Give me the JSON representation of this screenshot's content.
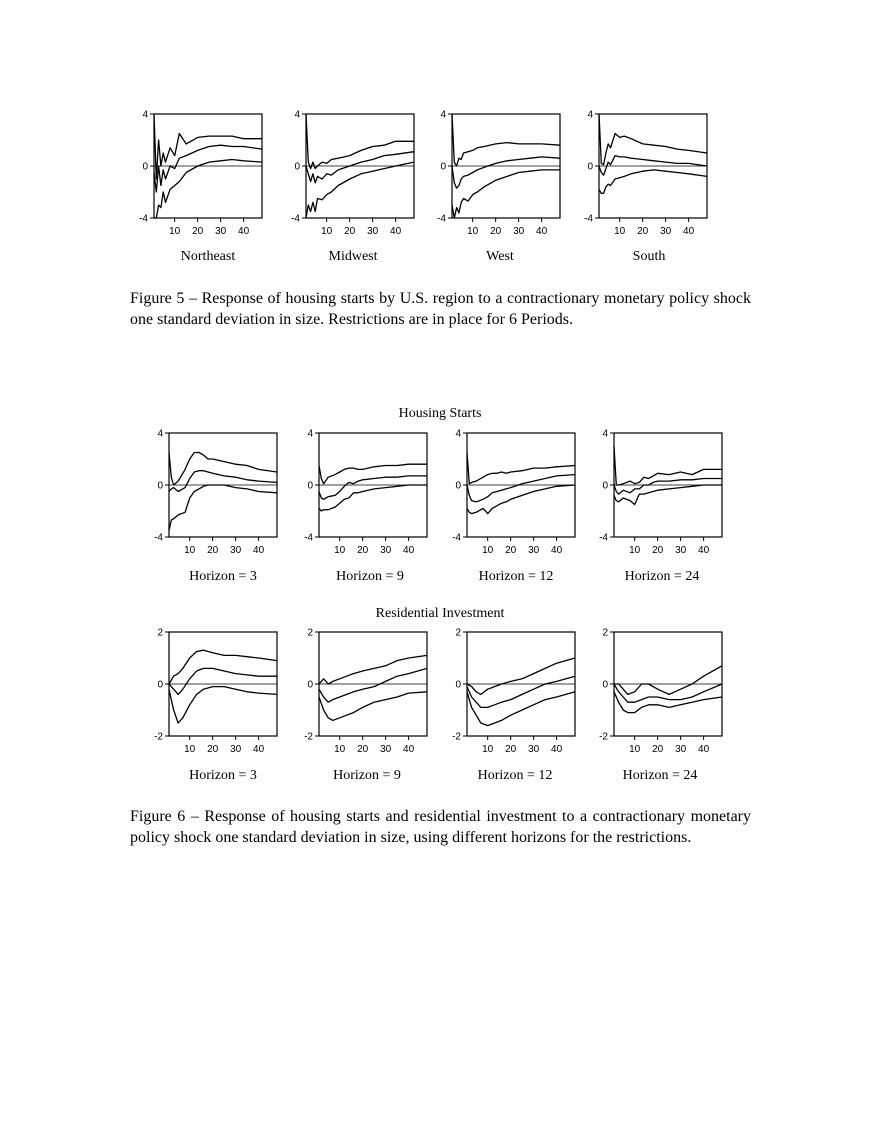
{
  "figure5": {
    "caption": "Figure 5 – Response of housing starts by U.S. region to a contractionary monetary policy shock one standard deviation in size. Restrictions are in place for 6 Periods.",
    "panels": [
      {
        "label": "Northeast"
      },
      {
        "label": "Midwest"
      },
      {
        "label": "West"
      },
      {
        "label": "South"
      }
    ]
  },
  "figure6": {
    "row1_title": "Housing Starts",
    "row2_title": "Residential Investment",
    "caption": "Figure 6 – Response of housing starts and residential investment to a contractionary monetary policy shock one standard deviation in size, using different horizons for the restrictions.",
    "row1_panels": [
      {
        "label": "Horizon = 3"
      },
      {
        "label": "Horizon = 9"
      },
      {
        "label": "Horizon = 12"
      },
      {
        "label": "Horizon = 24"
      }
    ],
    "row2_panels": [
      {
        "label": "Horizon = 3"
      },
      {
        "label": "Horizon = 9"
      },
      {
        "label": "Horizon = 12"
      },
      {
        "label": "Horizon = 24"
      }
    ]
  },
  "chart_data": [
    {
      "type": "line",
      "title": "Northeast",
      "xlim": [
        1,
        48
      ],
      "ylim": [
        -4,
        4
      ],
      "yticks": [
        4,
        0,
        -4
      ],
      "xticks": [
        10,
        20,
        30,
        40
      ],
      "zero_line": true,
      "x": [
        1,
        2,
        3,
        4,
        5,
        6,
        8,
        10,
        12,
        15,
        20,
        25,
        30,
        35,
        40,
        48
      ],
      "series": [
        {
          "values": [
            4,
            -1,
            2,
            0,
            1,
            0.3,
            1.4,
            0.8,
            2.5,
            1.7,
            2.2,
            2.3,
            2.3,
            2.3,
            2.1,
            2.1
          ]
        },
        {
          "values": [
            -0.5,
            -2,
            0,
            -1.5,
            -0.3,
            -1,
            0,
            -0.2,
            0.6,
            0.8,
            1.2,
            1.5,
            1.6,
            1.5,
            1.5,
            1.3
          ]
        },
        {
          "values": [
            -4,
            -4,
            -3,
            -3.2,
            -2,
            -2.8,
            -1.8,
            -1.5,
            -1.2,
            -0.5,
            0,
            0.3,
            0.4,
            0.5,
            0.4,
            0.3
          ]
        }
      ]
    },
    {
      "type": "line",
      "title": "Midwest",
      "xlim": [
        1,
        48
      ],
      "ylim": [
        -4,
        4
      ],
      "yticks": [
        4,
        0,
        -4
      ],
      "xticks": [
        10,
        20,
        30,
        40
      ],
      "zero_line": true,
      "x": [
        1,
        2,
        3,
        4,
        5,
        6,
        8,
        10,
        12,
        15,
        20,
        25,
        30,
        35,
        40,
        48
      ],
      "series": [
        {
          "values": [
            4,
            0.3,
            -0.2,
            0.3,
            -0.2,
            0,
            0.3,
            0.2,
            0.5,
            0.6,
            0.8,
            1.2,
            1.5,
            1.6,
            1.9,
            1.9
          ]
        },
        {
          "values": [
            0,
            -0.6,
            -1.2,
            -0.6,
            -1.3,
            -0.8,
            -1.0,
            -0.6,
            -0.7,
            -0.3,
            0,
            0.3,
            0.5,
            0.8,
            0.9,
            1.1
          ]
        },
        {
          "values": [
            -4,
            -3,
            -3.5,
            -2.8,
            -3.5,
            -2.5,
            -2.6,
            -2.2,
            -2,
            -1.5,
            -1,
            -0.6,
            -0.4,
            -0.2,
            0,
            0.3
          ]
        }
      ]
    },
    {
      "type": "line",
      "title": "West",
      "xlim": [
        1,
        48
      ],
      "ylim": [
        -4,
        4
      ],
      "yticks": [
        4,
        0,
        -4
      ],
      "xticks": [
        10,
        20,
        30,
        40
      ],
      "zero_line": true,
      "x": [
        1,
        2,
        3,
        4,
        5,
        6,
        8,
        10,
        12,
        15,
        20,
        25,
        30,
        35,
        40,
        48
      ],
      "series": [
        {
          "values": [
            4,
            0.3,
            0,
            0.6,
            0.5,
            1,
            1.1,
            1.2,
            1.4,
            1.5,
            1.7,
            1.8,
            1.7,
            1.7,
            1.7,
            1.6
          ]
        },
        {
          "values": [
            0,
            -1.3,
            -1.7,
            -1.5,
            -1,
            -0.8,
            -0.7,
            -0.5,
            -0.3,
            -0.1,
            0.2,
            0.4,
            0.5,
            0.6,
            0.7,
            0.6
          ]
        },
        {
          "values": [
            -3,
            -4,
            -3.2,
            -3.6,
            -2.8,
            -2.5,
            -2.7,
            -2.2,
            -2,
            -1.6,
            -1.1,
            -0.8,
            -0.5,
            -0.4,
            -0.3,
            -0.3
          ]
        }
      ]
    },
    {
      "type": "line",
      "title": "South",
      "xlim": [
        1,
        48
      ],
      "ylim": [
        -4,
        4
      ],
      "yticks": [
        4,
        0,
        -4
      ],
      "xticks": [
        10,
        20,
        30,
        40
      ],
      "zero_line": true,
      "x": [
        1,
        2,
        3,
        4,
        5,
        6,
        8,
        10,
        12,
        15,
        20,
        25,
        30,
        35,
        40,
        48
      ],
      "series": [
        {
          "values": [
            4,
            0.2,
            0.1,
            1,
            1.7,
            1.4,
            2.5,
            2.2,
            2.3,
            2.1,
            1.7,
            1.6,
            1.5,
            1.3,
            1.2,
            1
          ]
        },
        {
          "values": [
            0,
            -0.5,
            -0.7,
            -0.2,
            0.3,
            0.1,
            0.8,
            0.7,
            0.7,
            0.6,
            0.5,
            0.4,
            0.3,
            0.2,
            0.2,
            0
          ]
        },
        {
          "values": [
            -1.8,
            -2.1,
            -2.1,
            -1.6,
            -1.4,
            -1.5,
            -1,
            -0.9,
            -0.8,
            -0.6,
            -0.4,
            -0.3,
            -0.4,
            -0.5,
            -0.6,
            -0.8
          ]
        }
      ]
    },
    {
      "type": "line",
      "title": "Housing Starts",
      "subtitle": "Horizon = 3",
      "xlim": [
        1,
        48
      ],
      "ylim": [
        -4,
        4
      ],
      "yticks": [
        4,
        0,
        -4
      ],
      "xticks": [
        10,
        20,
        30,
        40
      ],
      "zero_line": true,
      "x": [
        1,
        2,
        3,
        5,
        8,
        10,
        12,
        14,
        16,
        18,
        20,
        25,
        30,
        35,
        40,
        48
      ],
      "series": [
        {
          "values": [
            2.5,
            0.6,
            0,
            0.3,
            1.2,
            2,
            2.5,
            2.5,
            2.3,
            2.0,
            2.0,
            1.8,
            1.6,
            1.5,
            1.2,
            1.0
          ]
        },
        {
          "values": [
            -0.5,
            -0.3,
            -0.2,
            -0.5,
            -0.2,
            0.5,
            1,
            1.1,
            1.1,
            1,
            0.9,
            0.7,
            0.6,
            0.4,
            0.3,
            0.2
          ]
        },
        {
          "values": [
            -3.5,
            -2.7,
            -2.6,
            -2.3,
            -2.1,
            -1,
            -0.5,
            -0.3,
            -0.1,
            0,
            0,
            0,
            -0.2,
            -0.3,
            -0.5,
            -0.6
          ]
        }
      ]
    },
    {
      "type": "line",
      "title": "Housing Starts",
      "subtitle": "Horizon = 9",
      "xlim": [
        1,
        48
      ],
      "ylim": [
        -4,
        4
      ],
      "yticks": [
        4,
        0,
        -4
      ],
      "xticks": [
        10,
        20,
        30,
        40
      ],
      "zero_line": true,
      "x": [
        1,
        2,
        3,
        5,
        8,
        10,
        12,
        14,
        16,
        18,
        20,
        25,
        30,
        35,
        40,
        48
      ],
      "series": [
        {
          "values": [
            1.5,
            0.5,
            0.1,
            0.6,
            0.8,
            1,
            1.2,
            1.3,
            1.3,
            1.2,
            1.2,
            1.4,
            1.5,
            1.5,
            1.6,
            1.6
          ]
        },
        {
          "values": [
            -0.5,
            -1,
            -1.1,
            -0.9,
            -0.8,
            -0.5,
            -0.1,
            0.2,
            0.1,
            0.3,
            0.4,
            0.5,
            0.6,
            0.6,
            0.7,
            0.7
          ]
        },
        {
          "values": [
            -1.8,
            -2,
            -1.9,
            -1.9,
            -1.7,
            -1.4,
            -1.1,
            -1,
            -0.6,
            -0.6,
            -0.5,
            -0.3,
            -0.2,
            -0.1,
            0,
            0
          ]
        }
      ]
    },
    {
      "type": "line",
      "title": "Housing Starts",
      "subtitle": "Horizon = 12",
      "xlim": [
        1,
        48
      ],
      "ylim": [
        -4,
        4
      ],
      "yticks": [
        4,
        0,
        -4
      ],
      "xticks": [
        10,
        20,
        30,
        40
      ],
      "zero_line": true,
      "x": [
        1,
        2,
        3,
        5,
        8,
        10,
        12,
        14,
        16,
        18,
        20,
        25,
        30,
        35,
        40,
        48
      ],
      "series": [
        {
          "values": [
            2.5,
            0.1,
            0.2,
            0.3,
            0.6,
            0.8,
            0.9,
            0.9,
            1,
            0.9,
            1,
            1.1,
            1.3,
            1.3,
            1.4,
            1.5
          ]
        },
        {
          "values": [
            0,
            -0.8,
            -1.2,
            -1.3,
            -1.1,
            -0.9,
            -0.6,
            -0.5,
            -0.4,
            -0.3,
            -0.2,
            0.1,
            0.3,
            0.5,
            0.7,
            0.8
          ]
        },
        {
          "values": [
            -1.8,
            -2.1,
            -2.2,
            -2.1,
            -1.8,
            -2.2,
            -1.8,
            -1.6,
            -1.4,
            -1.3,
            -1.1,
            -0.8,
            -0.5,
            -0.3,
            -0.1,
            0
          ]
        }
      ]
    },
    {
      "type": "line",
      "title": "Housing Starts",
      "subtitle": "Horizon = 24",
      "xlim": [
        1,
        48
      ],
      "ylim": [
        -4,
        4
      ],
      "yticks": [
        4,
        0,
        -4
      ],
      "xticks": [
        10,
        20,
        30,
        40
      ],
      "zero_line": true,
      "x": [
        1,
        2,
        3,
        5,
        8,
        10,
        12,
        14,
        16,
        18,
        20,
        25,
        30,
        35,
        40,
        48
      ],
      "series": [
        {
          "values": [
            3,
            0,
            0,
            0.1,
            0.3,
            0.1,
            0.2,
            0.6,
            0.5,
            0.7,
            0.9,
            0.8,
            1,
            0.8,
            1.2,
            1.2
          ]
        },
        {
          "values": [
            0,
            -0.5,
            -0.7,
            -0.4,
            -0.6,
            -0.3,
            -0.3,
            0,
            0,
            0.2,
            0.3,
            0.3,
            0.4,
            0.4,
            0.5,
            0.5
          ]
        },
        {
          "values": [
            -0.8,
            -1.2,
            -1.3,
            -1,
            -1.2,
            -1.5,
            -0.7,
            -0.7,
            -0.6,
            -0.5,
            -0.4,
            -0.3,
            -0.2,
            -0.1,
            0,
            0
          ]
        }
      ]
    },
    {
      "type": "line",
      "title": "Residential Investment",
      "subtitle": "Horizon = 3",
      "xlim": [
        1,
        48
      ],
      "ylim": [
        -2,
        2
      ],
      "yticks": [
        2,
        0,
        -2
      ],
      "xticks": [
        10,
        20,
        30,
        40
      ],
      "zero_line": true,
      "x": [
        1,
        3,
        5,
        7,
        10,
        13,
        16,
        20,
        25,
        30,
        35,
        40,
        48
      ],
      "series": [
        {
          "values": [
            0,
            0.3,
            0.4,
            0.6,
            1.0,
            1.25,
            1.3,
            1.2,
            1.1,
            1.1,
            1.05,
            1.0,
            0.9
          ]
        },
        {
          "values": [
            0,
            -0.2,
            -0.4,
            -0.2,
            0.2,
            0.5,
            0.6,
            0.6,
            0.5,
            0.4,
            0.35,
            0.3,
            0.3
          ]
        },
        {
          "values": [
            -0.2,
            -1,
            -1.5,
            -1.3,
            -0.8,
            -0.4,
            -0.2,
            -0.1,
            -0.1,
            -0.2,
            -0.3,
            -0.35,
            -0.4
          ]
        }
      ]
    },
    {
      "type": "line",
      "title": "Residential Investment",
      "subtitle": "Horizon = 9",
      "xlim": [
        1,
        48
      ],
      "ylim": [
        -2,
        2
      ],
      "yticks": [
        2,
        0,
        -2
      ],
      "xticks": [
        10,
        20,
        30,
        40
      ],
      "zero_line": true,
      "x": [
        1,
        3,
        5,
        7,
        10,
        13,
        16,
        20,
        25,
        30,
        35,
        40,
        48
      ],
      "series": [
        {
          "values": [
            0,
            0.2,
            0,
            0.1,
            0.2,
            0.3,
            0.4,
            0.5,
            0.6,
            0.7,
            0.9,
            1.0,
            1.1
          ]
        },
        {
          "values": [
            -0.2,
            -0.5,
            -0.7,
            -0.6,
            -0.5,
            -0.4,
            -0.3,
            -0.2,
            -0.1,
            0.1,
            0.3,
            0.4,
            0.6
          ]
        },
        {
          "values": [
            -0.5,
            -1,
            -1.3,
            -1.4,
            -1.3,
            -1.2,
            -1.1,
            -0.9,
            -0.7,
            -0.6,
            -0.5,
            -0.35,
            -0.3
          ]
        }
      ]
    },
    {
      "type": "line",
      "title": "Residential Investment",
      "subtitle": "Horizon = 12",
      "xlim": [
        1,
        48
      ],
      "ylim": [
        -2,
        2
      ],
      "yticks": [
        2,
        0,
        -2
      ],
      "xticks": [
        10,
        20,
        30,
        40
      ],
      "zero_line": true,
      "x": [
        1,
        3,
        5,
        7,
        10,
        13,
        16,
        20,
        25,
        30,
        35,
        40,
        48
      ],
      "series": [
        {
          "values": [
            0,
            -0.1,
            -0.3,
            -0.4,
            -0.2,
            -0.1,
            0,
            0.1,
            0.2,
            0.4,
            0.6,
            0.8,
            1.0
          ]
        },
        {
          "values": [
            -0.1,
            -0.5,
            -0.7,
            -0.9,
            -0.9,
            -0.8,
            -0.7,
            -0.6,
            -0.4,
            -0.2,
            0,
            0.1,
            0.3
          ]
        },
        {
          "values": [
            -0.3,
            -0.9,
            -1.2,
            -1.5,
            -1.6,
            -1.5,
            -1.4,
            -1.2,
            -1.0,
            -0.8,
            -0.6,
            -0.5,
            -0.3
          ]
        }
      ]
    },
    {
      "type": "line",
      "title": "Residential Investment",
      "subtitle": "Horizon = 24",
      "xlim": [
        1,
        48
      ],
      "ylim": [
        -2,
        2
      ],
      "yticks": [
        2,
        0,
        -2
      ],
      "xticks": [
        10,
        20,
        30,
        40
      ],
      "zero_line": true,
      "x": [
        1,
        3,
        5,
        7,
        10,
        13,
        16,
        20,
        25,
        30,
        35,
        40,
        48
      ],
      "series": [
        {
          "values": [
            0,
            0,
            -0.2,
            -0.4,
            -0.3,
            0,
            0,
            -0.2,
            -0.4,
            -0.2,
            0,
            0.3,
            0.7
          ]
        },
        {
          "values": [
            0,
            -0.3,
            -0.5,
            -0.7,
            -0.7,
            -0.6,
            -0.5,
            -0.5,
            -0.6,
            -0.6,
            -0.5,
            -0.3,
            0
          ]
        },
        {
          "values": [
            -0.3,
            -0.7,
            -1,
            -1.1,
            -1.1,
            -0.9,
            -0.8,
            -0.8,
            -0.9,
            -0.8,
            -0.7,
            -0.6,
            -0.5
          ]
        }
      ]
    }
  ]
}
